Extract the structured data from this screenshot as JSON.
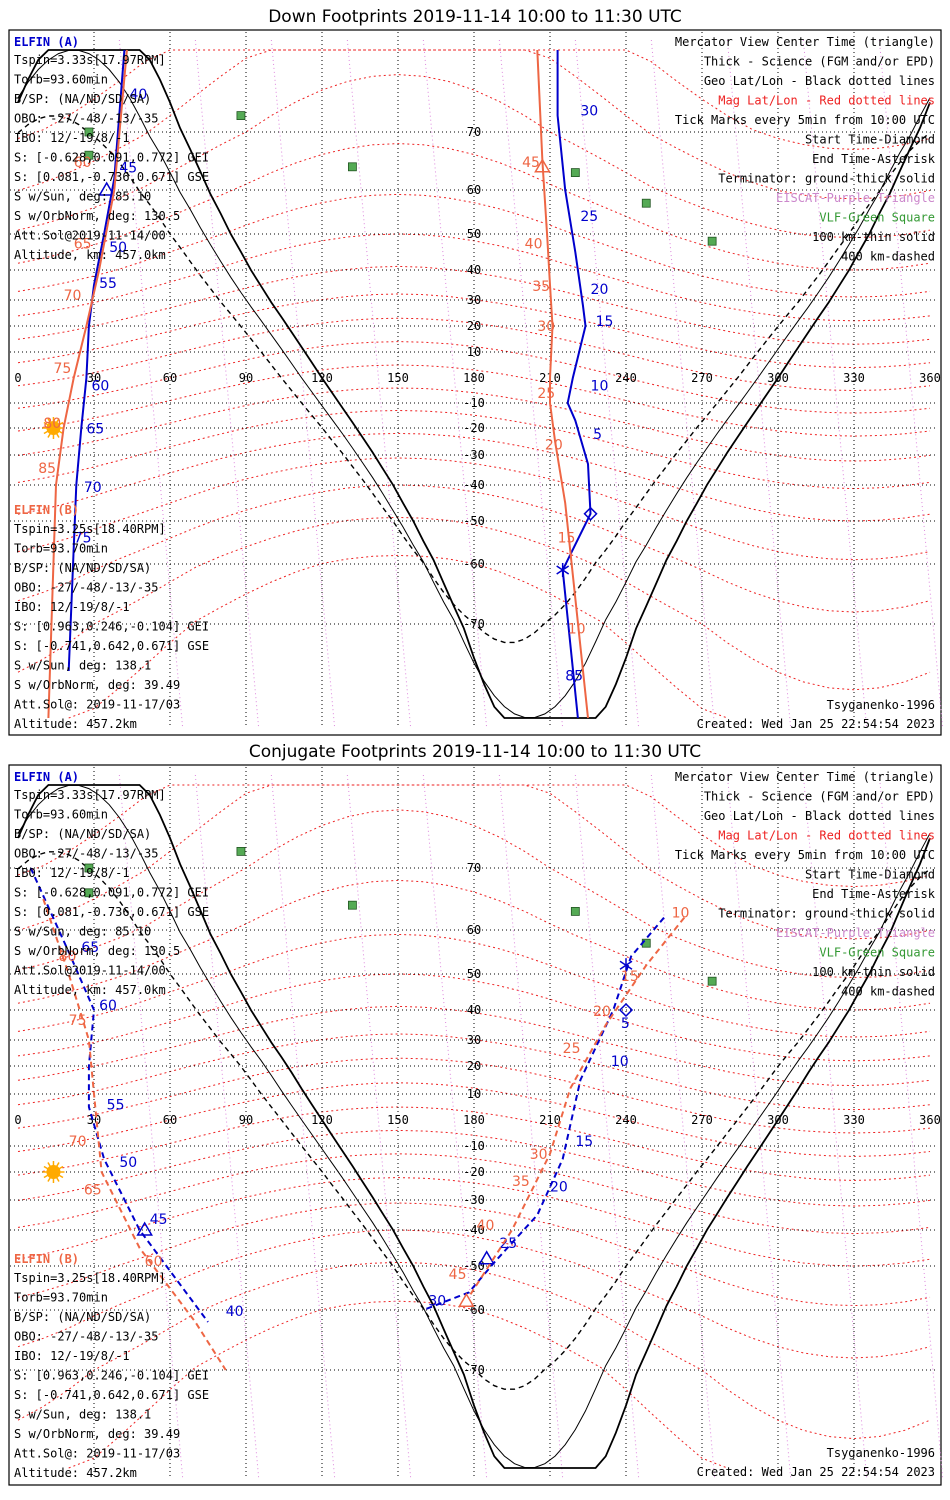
{
  "map_view": {
    "x_range": [
      0,
      360
    ],
    "lat_range": [
      -80,
      80
    ],
    "projection": "mercator"
  },
  "colors": {
    "sat_a": "#0000cc",
    "sat_b": "#ee6644",
    "mag_grid": "#ee2222",
    "geo_grid": "#000000",
    "purple": "#cc44cc",
    "vlf_green": "#339933",
    "sun": "#ffaa00",
    "coast": "#bbbbbb"
  },
  "info_left": {
    "elfin_a_title": "ELFIN (A)",
    "elfin_a": [
      "Tspin=3.33s[17.97RPM]",
      "Torb=93.60min",
      "B/SP: (NA/ND/SD/SA)",
      "OBO: -27/-48/-13/-35",
      "IBO: 12/-19/8/-1",
      "S: [-0.628,0.091,0.772] GEI",
      "S: [0.081,-0.736,0.671] GSE",
      "S w/Sun, deg: 85.10",
      "S w/OrbNorm, deg: 130.5",
      "Att.Sol@2019-11-14/00",
      "Altitude, km: 457.0km"
    ],
    "elfin_b_title": "ELFIN (B)",
    "elfin_b": [
      "Tspin=3.25s[18.40RPM]",
      "Torb=93.70min",
      "B/SP: (NA/ND/SD/SA)",
      "OBO: -27/-48/-13/-35",
      "IBO: 12/-19/8/-1",
      "S: [0.963,0.246,-0.104] GEI",
      "S: [-0.741,0.642,0.671] GSE",
      "S w/Sun, deg: 138.1",
      "S w/OrbNorm, deg: 39.49",
      "Att.Sol@: 2019-11-17/03",
      "Altitude: 457.2km"
    ]
  },
  "legend_right": [
    {
      "text": "Mercator View Center Time (triangle)",
      "color": "#000000"
    },
    {
      "text": "Thick - Science (FGM and/or EPD)",
      "color": "#000000"
    },
    {
      "text": "Geo Lat/Lon - Black dotted lines",
      "color": "#000000"
    },
    {
      "text": "Mag Lat/Lon - Red dotted lines",
      "color": "#ee2222"
    },
    {
      "text": "Tick Marks every 5min from 10:00 UTC",
      "color": "#000000"
    },
    {
      "text": "Start Time-Diamond",
      "color": "#000000"
    },
    {
      "text": "End Time-Asterisk",
      "color": "#000000"
    },
    {
      "text": "Terminator: ground-thick solid",
      "color": "#000000"
    },
    {
      "text": "EISCAT-Purple Triangle",
      "color": "#cc88cc"
    },
    {
      "text": "VLF-Green Square",
      "color": "#339933"
    },
    {
      "text": "100 km-thin solid",
      "color": "#000000"
    },
    {
      "text": "400 km-dashed",
      "color": "#000000"
    }
  ],
  "footer_right": {
    "model": "Tsyganenko-1996",
    "created": "Created: Wed Jan 25 22:54:54 2023"
  },
  "lon_ticks": [
    "0",
    "30",
    "60",
    "90",
    "120",
    "150",
    "180",
    "210",
    "240",
    "270",
    "300",
    "330",
    "360"
  ],
  "lat_ticks": [
    "70",
    "60",
    "50",
    "40",
    "30",
    "20",
    "10",
    "-10",
    "-20",
    "-30",
    "-40",
    "-50",
    "-60",
    "-70"
  ],
  "chart_data": [
    {
      "type": "scatter",
      "title": "Down Footprints 2019-11-14 10:00 to 11:30 UTC",
      "xlabel": "",
      "ylabel": "",
      "xlim": [
        0,
        360
      ],
      "ylim": [
        -80,
        80
      ],
      "vlf_sites": [
        [
          88,
          72
        ],
        [
          28,
          70
        ],
        [
          132,
          64
        ],
        [
          220,
          63
        ],
        [
          248,
          57
        ],
        [
          274,
          48
        ],
        [
          28,
          66
        ]
      ],
      "sun": [
        14,
        -20
      ],
      "series": [
        {
          "name": "ELFIN (A)",
          "color": "#0000cc",
          "style": "solid",
          "points": [
            [
              213,
              83
            ],
            [
              213,
              72
            ],
            [
              216,
              60
            ],
            [
              220,
              45
            ],
            [
              223,
              28
            ],
            [
              224,
              20
            ],
            [
              219,
              0
            ],
            [
              217,
              -10
            ],
            [
              220,
              -17
            ],
            [
              225,
              -33
            ],
            [
              226,
              -48
            ],
            [
              215,
              -61
            ],
            [
              221,
              -82
            ]
          ],
          "labels": [
            {
              "text": "30",
              "at": [
                222,
                72
              ]
            },
            {
              "text": "25",
              "at": [
                222,
                53
              ]
            },
            {
              "text": "20",
              "at": [
                226,
                32
              ]
            },
            {
              "text": "15",
              "at": [
                228,
                20
              ]
            },
            {
              "text": "10",
              "at": [
                226,
                -5
              ]
            },
            {
              "text": "5",
              "at": [
                227,
                -24
              ]
            },
            {
              "text": "85",
              "at": [
                216,
                -76
              ]
            }
          ],
          "start": [
            226,
            -48
          ],
          "end": [
            215,
            -61
          ],
          "center": null
        },
        {
          "name": "ELFIN (A) south",
          "color": "#0000cc",
          "style": "solid",
          "points": [
            [
              42,
              80
            ],
            [
              38,
              62
            ],
            [
              34,
              50
            ],
            [
              30,
              35
            ],
            [
              28,
              20
            ],
            [
              27,
              0
            ],
            [
              25,
              -20
            ],
            [
              23,
              -40
            ],
            [
              20,
              -75
            ]
          ],
          "labels": [
            {
              "text": "40",
              "at": [
                44,
                74
              ]
            },
            {
              "text": "45",
              "at": [
                40,
                63
              ]
            },
            {
              "text": "50",
              "at": [
                36,
                45
              ]
            },
            {
              "text": "55",
              "at": [
                32,
                34
              ]
            },
            {
              "text": "60",
              "at": [
                29,
                -5
              ]
            },
            {
              "text": "65",
              "at": [
                27,
                -22
              ]
            },
            {
              "text": "70",
              "at": [
                26,
                -42
              ]
            },
            {
              "text": "75",
              "at": [
                22,
                -55
              ]
            }
          ],
          "start": null,
          "end": null,
          "center": [
            35,
            60
          ]
        },
        {
          "name": "ELFIN (B)",
          "color": "#ee6644",
          "style": "solid",
          "points": [
            [
              205,
              80
            ],
            [
              207,
              65
            ],
            [
              209,
              48
            ],
            [
              210,
              35
            ],
            [
              211,
              20
            ],
            [
              210,
              0
            ],
            [
              210,
              -10
            ],
            [
              212,
              -25
            ],
            [
              216,
              -45
            ],
            [
              225,
              -80
            ]
          ],
          "labels": [
            {
              "text": "45",
              "at": [
                199,
                64
              ]
            },
            {
              "text": "40",
              "at": [
                200,
                46
              ]
            },
            {
              "text": "35",
              "at": [
                203,
                33
              ]
            },
            {
              "text": "30",
              "at": [
                205,
                18
              ]
            },
            {
              "text": "25",
              "at": [
                205,
                -8
              ]
            },
            {
              "text": "20",
              "at": [
                208,
                -28
              ]
            },
            {
              "text": "15",
              "at": [
                213,
                -55
              ]
            },
            {
              "text": "10",
              "at": [
                217,
                -71
              ]
            }
          ],
          "start": null,
          "end": null,
          "center": [
            207,
            64
          ]
        },
        {
          "name": "ELFIN (B) south",
          "color": "#ee6644",
          "style": "solid",
          "points": [
            [
              43,
              80
            ],
            [
              38,
              60
            ],
            [
              32,
              40
            ],
            [
              27,
              20
            ],
            [
              22,
              0
            ],
            [
              18,
              -20
            ],
            [
              15,
              -40
            ],
            [
              12,
              -80
            ]
          ],
          "labels": [
            {
              "text": "60",
              "at": [
                22,
                64
              ]
            },
            {
              "text": "65",
              "at": [
                22,
                46
              ]
            },
            {
              "text": "70",
              "at": [
                18,
                30
              ]
            },
            {
              "text": "75",
              "at": [
                14,
                2
              ]
            },
            {
              "text": "80",
              "at": [
                10,
                -20
              ]
            },
            {
              "text": "85",
              "at": [
                8,
                -36
              ]
            }
          ],
          "start": null,
          "end": null,
          "center": null
        }
      ],
      "terminator": "down"
    },
    {
      "type": "scatter",
      "title": "Conjugate Footprints 2019-11-14 10:00 to 11:30 UTC",
      "xlabel": "",
      "ylabel": "",
      "xlim": [
        0,
        360
      ],
      "ylim": [
        -80,
        80
      ],
      "vlf_sites": [
        [
          88,
          72
        ],
        [
          28,
          70
        ],
        [
          132,
          64
        ],
        [
          220,
          63
        ],
        [
          248,
          57
        ],
        [
          274,
          48
        ],
        [
          28,
          66
        ]
      ],
      "sun": [
        14,
        -20
      ],
      "series": [
        {
          "name": "ELFIN (A)",
          "color": "#0000cc",
          "style": "dashed",
          "points": [
            [
              255,
              62
            ],
            [
              242,
              54
            ],
            [
              235,
              40
            ],
            [
              228,
              27
            ],
            [
              222,
              15
            ],
            [
              215,
              -15
            ],
            [
              205,
              -35
            ],
            [
              188,
              -49
            ],
            [
              178,
              -56
            ],
            [
              160,
              -60
            ]
          ],
          "labels": [
            {
              "text": "5",
              "at": [
                238,
                34
              ]
            },
            {
              "text": "10",
              "at": [
                234,
                20
              ]
            },
            {
              "text": "15",
              "at": [
                220,
                -10
              ]
            },
            {
              "text": "20",
              "at": [
                210,
                -27
              ]
            },
            {
              "text": "25",
              "at": [
                190,
                -45
              ]
            },
            {
              "text": "30",
              "at": [
                162,
                -59
              ]
            }
          ],
          "start": [
            240,
            40
          ],
          "end": [
            240,
            52
          ],
          "center": [
            185,
            -48
          ]
        },
        {
          "name": "ELFIN (A) south",
          "color": "#0000cc",
          "style": "dashed",
          "points": [
            [
              5,
              70
            ],
            [
              20,
              55
            ],
            [
              30,
              40
            ],
            [
              28,
              20
            ],
            [
              28,
              5
            ],
            [
              34,
              -15
            ],
            [
              48,
              -40
            ],
            [
              75,
              -62
            ]
          ],
          "labels": [
            {
              "text": "65",
              "at": [
                25,
                55
              ]
            },
            {
              "text": "60",
              "at": [
                32,
                40
              ]
            },
            {
              "text": "55",
              "at": [
                35,
                4
              ]
            },
            {
              "text": "50",
              "at": [
                40,
                -18
              ]
            },
            {
              "text": "45",
              "at": [
                52,
                -38
              ]
            },
            {
              "text": "40",
              "at": [
                82,
                -61
              ]
            }
          ],
          "start": null,
          "end": null,
          "center": [
            50,
            -40
          ]
        },
        {
          "name": "ELFIN (B)",
          "color": "#ee6644",
          "style": "dashed",
          "points": [
            [
              263,
              62
            ],
            [
              248,
              52
            ],
            [
              232,
              35
            ],
            [
              218,
              12
            ],
            [
              210,
              -13
            ],
            [
              195,
              -40
            ],
            [
              178,
              -57
            ]
          ],
          "labels": [
            {
              "text": "10",
              "at": [
                258,
                62
              ]
            },
            {
              "text": "15",
              "at": [
                238,
                48
              ]
            },
            {
              "text": "20",
              "at": [
                227,
                38
              ]
            },
            {
              "text": "25",
              "at": [
                215,
                25
              ]
            },
            {
              "text": "30",
              "at": [
                202,
                -15
              ]
            },
            {
              "text": "35",
              "at": [
                195,
                -25
              ]
            },
            {
              "text": "40",
              "at": [
                181,
                -40
              ]
            },
            {
              "text": "45",
              "at": [
                170,
                -53
              ]
            }
          ],
          "start": null,
          "end": null,
          "center": [
            177,
            -58
          ]
        },
        {
          "name": "ELFIN (B) south",
          "color": "#ee6644",
          "style": "dashed",
          "points": [
            [
              10,
              65
            ],
            [
              20,
              50
            ],
            [
              28,
              30
            ],
            [
              30,
              10
            ],
            [
              33,
              -20
            ],
            [
              48,
              -45
            ],
            [
              70,
              -62
            ],
            [
              82,
              -70
            ]
          ],
          "labels": [
            {
              "text": "80",
              "at": [
                16,
                53
              ]
            },
            {
              "text": "75",
              "at": [
                20,
                35
              ]
            },
            {
              "text": "70",
              "at": [
                20,
                -10
              ]
            },
            {
              "text": "65",
              "at": [
                26,
                -28
              ]
            },
            {
              "text": "60",
              "at": [
                50,
                -50
              ]
            }
          ],
          "start": null,
          "end": null,
          "center": null
        }
      ],
      "terminator": "conjugate"
    }
  ]
}
